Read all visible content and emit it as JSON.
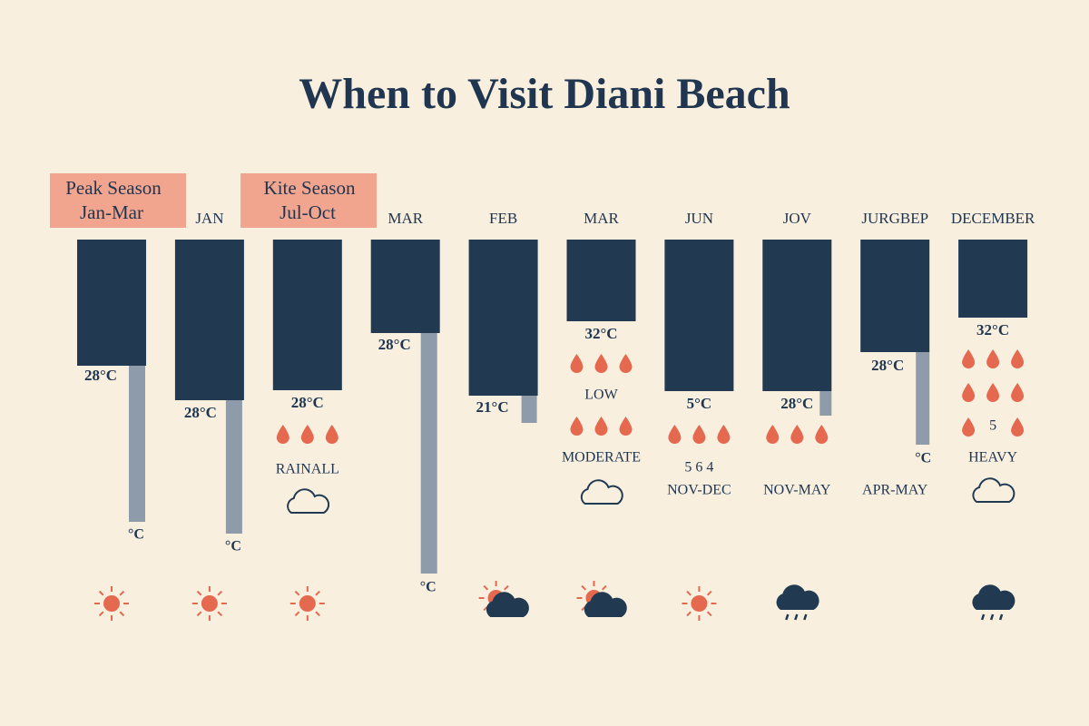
{
  "title": "When to Visit Diani Beach",
  "badges": [
    {
      "title": "Peak Season",
      "range": "Jan-Mar"
    },
    {
      "title": "Kite Season",
      "range": "Jul-Oct"
    }
  ],
  "columns": [
    {
      "temp": "28°C",
      "unit": "°C"
    },
    {
      "label": "JAN",
      "temp": "28°C",
      "unit": "°C"
    },
    {
      "temp": "28°C",
      "texts": [
        "RAINALL"
      ]
    },
    {
      "label": "MAR",
      "temp": "28°C",
      "unit": "°C"
    },
    {
      "label": "FEB",
      "temp": "21°C"
    },
    {
      "label": "MAR",
      "temp": "32°C",
      "texts": [
        "LOW",
        "MODERATE"
      ]
    },
    {
      "label": "JUN",
      "temp": "5°C",
      "texts": [
        "5  6  4",
        "NOV-DEC"
      ]
    },
    {
      "label": "JOV",
      "temp": "28°C",
      "texts": [
        "NOV-MAY"
      ]
    },
    {
      "label": "JURGBEP",
      "temp": "28°C",
      "unit": "°C",
      "texts": [
        "APR-MAY"
      ]
    },
    {
      "label": "DECEMBER",
      "temp": "32°C",
      "texts": [
        "5",
        "HEAVY"
      ]
    }
  ]
}
